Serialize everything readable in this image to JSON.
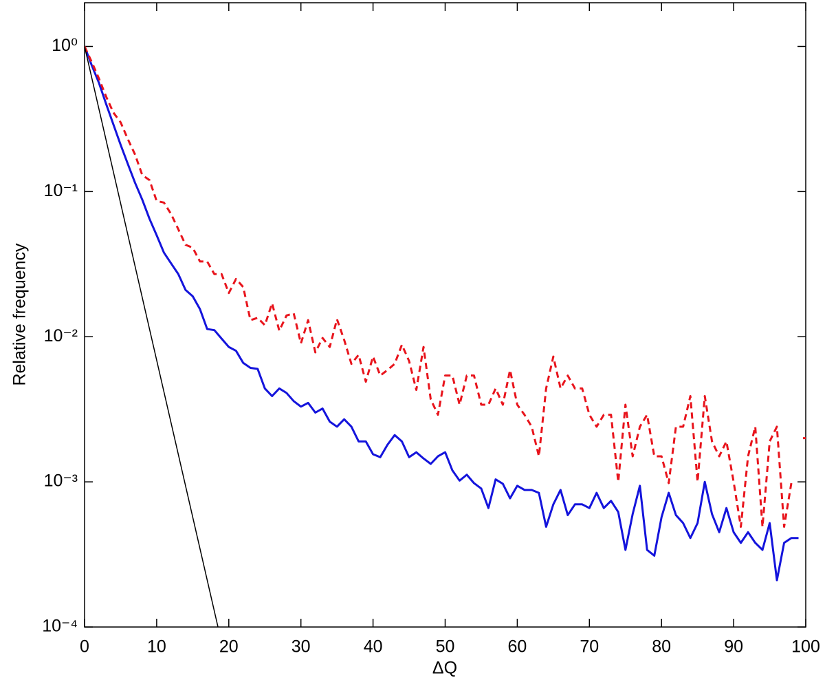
{
  "chart_data": {
    "type": "line",
    "xlabel": "ΔQ",
    "ylabel": "Relative frequency",
    "xlim": [
      0,
      100
    ],
    "xticks": [
      0,
      10,
      20,
      30,
      40,
      50,
      60,
      70,
      80,
      90,
      100
    ],
    "ylim": [
      0.0001,
      2
    ],
    "yscale": "log",
    "yticks": [
      {
        "value": 1,
        "label": "10⁰"
      },
      {
        "value": 0.1,
        "label": "10⁻¹"
      },
      {
        "value": 0.01,
        "label": "10⁻²"
      },
      {
        "value": 0.001,
        "label": "10⁻³"
      },
      {
        "value": 0.0001,
        "label": "10⁻⁴"
      }
    ],
    "grid": false,
    "series": [
      {
        "color": "#1414dc",
        "dash": false,
        "width": 3,
        "x": [
          0,
          1,
          2,
          3,
          4,
          5,
          6,
          7,
          8,
          9,
          10,
          11,
          12,
          13,
          14,
          15,
          16,
          17,
          18,
          19,
          20,
          21,
          22,
          23,
          24,
          25,
          26,
          27,
          28,
          29,
          30,
          31,
          32,
          33,
          34,
          35,
          36,
          37,
          38,
          39,
          40,
          41,
          42,
          43,
          44,
          45,
          46,
          47,
          48,
          49,
          50,
          51,
          52,
          53,
          54,
          55,
          56,
          57,
          58,
          59,
          60,
          61,
          62,
          63,
          64,
          65,
          66,
          67,
          68,
          69,
          70,
          71,
          72,
          73,
          74,
          75,
          76,
          77,
          78,
          79,
          80,
          81,
          82,
          83,
          84,
          85,
          86,
          87,
          88,
          89,
          90,
          91,
          92,
          93,
          94,
          95,
          96,
          97,
          98,
          99,
          100
        ],
        "values": [
          1,
          0.74,
          0.56,
          0.4,
          0.29,
          0.21,
          0.155,
          0.115,
          0.088,
          0.065,
          0.05,
          0.038,
          0.032,
          0.027,
          0.021,
          0.019,
          0.0155,
          0.0113,
          0.0111,
          0.0097,
          0.0085,
          0.008,
          0.0066,
          0.0061,
          0.006,
          0.0044,
          0.0039,
          0.0044,
          0.0041,
          0.0036,
          0.0033,
          0.0035,
          0.003,
          0.0032,
          0.0026,
          0.0024,
          0.0027,
          0.0024,
          0.0019,
          0.0019,
          0.00155,
          0.00148,
          0.0018,
          0.0021,
          0.0019,
          0.00148,
          0.0016,
          0.00145,
          0.00133,
          0.0015,
          0.0016,
          0.0012,
          0.00102,
          0.00112,
          0.00098,
          0.0009,
          0.00066,
          0.00104,
          0.00097,
          0.00077,
          0.00094,
          0.00088,
          0.00088,
          0.00084,
          0.00049,
          0.0007,
          0.00088,
          0.00059,
          0.0007,
          0.0007,
          0.00066,
          0.00084,
          0.00066,
          0.00074,
          0.00062,
          0.00034,
          0.0006,
          0.00094,
          0.00034,
          0.00031,
          0.00057,
          0.00084,
          0.00059,
          0.00052,
          0.00041,
          0.00052,
          0.001,
          0.0006,
          0.00045,
          0.00066,
          0.00045,
          0.00038,
          0.00045,
          0.00038,
          0.00034,
          0.00052,
          0.00021,
          0.00038,
          0.00041,
          0.00041,
          null
        ]
      },
      {
        "color": "#e8141c",
        "dash": true,
        "width": 3,
        "x": [
          0,
          1,
          2,
          3,
          4,
          5,
          6,
          7,
          8,
          9,
          10,
          11,
          12,
          13,
          14,
          15,
          16,
          17,
          18,
          19,
          20,
          21,
          22,
          23,
          24,
          25,
          26,
          27,
          28,
          29,
          30,
          31,
          32,
          33,
          34,
          35,
          36,
          37,
          38,
          39,
          40,
          41,
          42,
          43,
          44,
          45,
          46,
          47,
          48,
          49,
          50,
          51,
          52,
          53,
          54,
          55,
          56,
          57,
          58,
          59,
          60,
          61,
          62,
          63,
          64,
          65,
          66,
          67,
          68,
          69,
          70,
          71,
          72,
          73,
          74,
          75,
          76,
          77,
          78,
          79,
          80,
          81,
          82,
          83,
          84,
          85,
          86,
          87,
          88,
          89,
          90,
          91,
          92,
          93,
          94,
          95,
          96,
          97,
          98,
          99,
          100
        ],
        "values": [
          1,
          0.78,
          0.6,
          0.45,
          0.35,
          0.3,
          0.23,
          0.18,
          0.13,
          0.12,
          0.086,
          0.084,
          0.07,
          0.055,
          0.043,
          0.041,
          0.033,
          0.033,
          0.027,
          0.027,
          0.02,
          0.025,
          0.022,
          0.013,
          0.0135,
          0.012,
          0.017,
          0.011,
          0.014,
          0.0145,
          0.009,
          0.013,
          0.0078,
          0.0098,
          0.0085,
          0.0132,
          0.0095,
          0.0065,
          0.0075,
          0.0049,
          0.0073,
          0.0054,
          0.0059,
          0.0065,
          0.0088,
          0.0068,
          0.0043,
          0.0085,
          0.0037,
          0.0029,
          0.0054,
          0.0054,
          0.0034,
          0.0054,
          0.0054,
          0.0034,
          0.0034,
          0.0044,
          0.0034,
          0.0059,
          0.0034,
          0.0029,
          0.0024,
          0.0015,
          0.0044,
          0.0073,
          0.0044,
          0.0054,
          0.0044,
          0.0044,
          0.0029,
          0.0024,
          0.0029,
          0.0029,
          0.001,
          0.0034,
          0.0015,
          0.0024,
          0.0029,
          0.0015,
          0.0015,
          0.00098,
          0.0024,
          0.0024,
          0.0039,
          0.001,
          0.0039,
          0.0019,
          0.0015,
          0.0019,
          0.001,
          0.00049,
          0.0015,
          0.0024,
          0.00049,
          0.0019,
          0.0024,
          0.00049,
          0.00098,
          null,
          0.002
        ]
      },
      {
        "color": "#000000",
        "dash": false,
        "width": 1.5,
        "x": [
          0,
          18.5
        ],
        "values": [
          1,
          0.0001
        ]
      }
    ]
  }
}
